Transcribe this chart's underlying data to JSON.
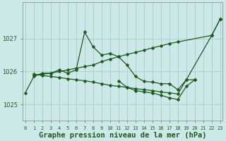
{
  "background_color": "#cce8e8",
  "grid_color": "#aacccc",
  "line_color": "#1a5c1a",
  "xlabel": "Graphe pression niveau de la mer (hPa)",
  "xlabel_fontsize": 7.5,
  "yticks": [
    1025,
    1026,
    1027
  ],
  "xticks": [
    0,
    1,
    2,
    3,
    4,
    5,
    6,
    7,
    8,
    9,
    10,
    11,
    12,
    13,
    14,
    15,
    16,
    17,
    18,
    19,
    20,
    21,
    22,
    23
  ],
  "ylim": [
    1024.5,
    1028.1
  ],
  "xlim": [
    -0.3,
    23.3
  ],
  "line1_x": [
    0,
    1,
    2,
    3,
    4,
    5,
    6,
    7,
    8,
    9,
    10,
    11,
    12,
    13,
    14,
    15,
    16,
    17,
    18,
    19,
    22,
    23
  ],
  "line1_y": [
    1025.35,
    1025.85,
    1025.95,
    1025.95,
    1026.05,
    1025.95,
    1026.05,
    1027.2,
    1026.75,
    1026.5,
    1026.55,
    1026.45,
    1026.2,
    1025.85,
    1025.7,
    1025.68,
    1025.63,
    1025.63,
    1025.45,
    1025.75,
    1027.1,
    1027.6
  ],
  "line2_x": [
    1,
    2,
    3,
    4,
    5,
    6,
    7,
    8,
    9,
    10,
    11,
    12,
    13,
    14,
    15,
    16,
    17,
    18,
    22,
    23
  ],
  "line2_y": [
    1025.9,
    1025.92,
    1025.95,
    1026.0,
    1026.05,
    1026.1,
    1026.15,
    1026.2,
    1026.3,
    1026.38,
    1026.45,
    1026.52,
    1026.58,
    1026.65,
    1026.72,
    1026.78,
    1026.85,
    1026.9,
    1027.1,
    1027.6
  ],
  "line3_x": [
    1,
    2,
    3,
    4,
    5,
    6,
    7,
    8,
    9,
    10,
    11,
    12,
    13,
    14,
    15,
    16,
    17,
    18,
    19,
    20
  ],
  "line3_y": [
    1025.92,
    1025.88,
    1025.85,
    1025.82,
    1025.78,
    1025.75,
    1025.72,
    1025.68,
    1025.63,
    1025.58,
    1025.55,
    1025.52,
    1025.48,
    1025.45,
    1025.42,
    1025.38,
    1025.35,
    1025.32,
    1025.75,
    1025.75
  ],
  "line4_x": [
    11,
    12,
    13,
    14,
    15,
    16,
    17,
    18,
    19,
    20
  ],
  "line4_y": [
    1025.72,
    1025.52,
    1025.42,
    1025.38,
    1025.35,
    1025.28,
    1025.2,
    1025.15,
    1025.55,
    1025.75
  ]
}
